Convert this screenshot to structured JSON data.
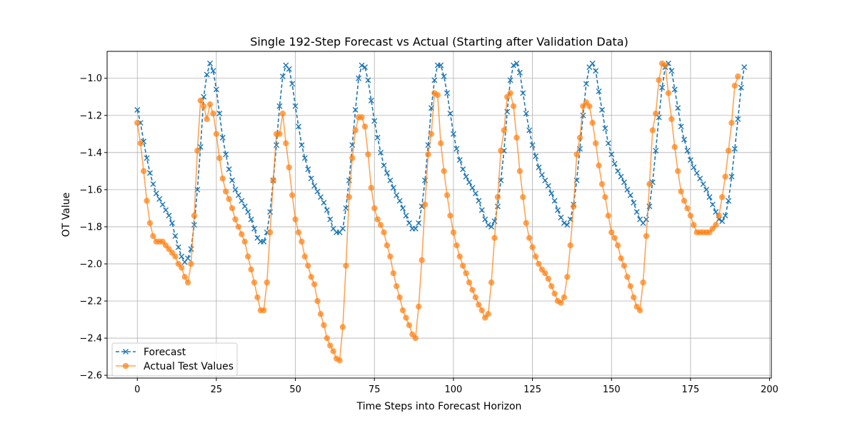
{
  "chart_data": {
    "type": "line",
    "title": "Single 192-Step Forecast vs Actual (Starting after Validation Data)",
    "xlabel": "Time Steps into Forecast Horizon",
    "ylabel": "OT Value",
    "xlim": [
      -9.55,
      200.55
    ],
    "ylim": [
      -2.615,
      -0.855
    ],
    "xticks": [
      0,
      25,
      50,
      75,
      100,
      125,
      150,
      175,
      200
    ],
    "yticks": [
      -2.6,
      -2.4,
      -2.2,
      -2.0,
      -1.8,
      -1.6,
      -1.4,
      -1.2,
      -1.0
    ],
    "xtick_labels": [
      "0",
      "25",
      "50",
      "75",
      "100",
      "125",
      "150",
      "175",
      "200"
    ],
    "ytick_labels": [
      "−2.6",
      "−2.4",
      "−2.2",
      "−2.0",
      "−1.8",
      "−1.6",
      "−1.4",
      "−1.2",
      "−1.0"
    ],
    "grid": true,
    "legend_position": "lower-left",
    "series": [
      {
        "name": "Forecast",
        "color": "#1f77b4",
        "line_style": "dashed",
        "marker": "x",
        "values": [
          -1.17,
          -1.24,
          -1.34,
          -1.43,
          -1.51,
          -1.57,
          -1.62,
          -1.65,
          -1.68,
          -1.71,
          -1.74,
          -1.78,
          -1.85,
          -1.91,
          -1.96,
          -1.99,
          -1.97,
          -1.92,
          -1.79,
          -1.6,
          -1.37,
          -1.1,
          -0.98,
          -0.92,
          -0.96,
          -1.06,
          -1.19,
          -1.32,
          -1.41,
          -1.49,
          -1.55,
          -1.6,
          -1.63,
          -1.66,
          -1.69,
          -1.72,
          -1.76,
          -1.81,
          -1.86,
          -1.88,
          -1.88,
          -1.83,
          -1.72,
          -1.55,
          -1.36,
          -1.15,
          -0.99,
          -0.93,
          -0.95,
          -1.03,
          -1.15,
          -1.26,
          -1.36,
          -1.43,
          -1.49,
          -1.54,
          -1.58,
          -1.61,
          -1.64,
          -1.67,
          -1.71,
          -1.76,
          -1.81,
          -1.83,
          -1.83,
          -1.81,
          -1.7,
          -1.55,
          -1.36,
          -1.17,
          -1.0,
          -0.93,
          -0.94,
          -1.01,
          -1.12,
          -1.23,
          -1.32,
          -1.4,
          -1.47,
          -1.51,
          -1.55,
          -1.59,
          -1.63,
          -1.66,
          -1.7,
          -1.74,
          -1.78,
          -1.81,
          -1.81,
          -1.78,
          -1.69,
          -1.55,
          -1.36,
          -1.16,
          -1.01,
          -0.93,
          -0.93,
          -0.99,
          -1.08,
          -1.19,
          -1.3,
          -1.38,
          -1.44,
          -1.49,
          -1.53,
          -1.56,
          -1.59,
          -1.62,
          -1.66,
          -1.71,
          -1.76,
          -1.79,
          -1.8,
          -1.77,
          -1.69,
          -1.55,
          -1.39,
          -1.18,
          -1.01,
          -0.93,
          -0.92,
          -0.97,
          -1.08,
          -1.19,
          -1.28,
          -1.36,
          -1.42,
          -1.48,
          -1.52,
          -1.55,
          -1.58,
          -1.62,
          -1.66,
          -1.71,
          -1.75,
          -1.78,
          -1.79,
          -1.76,
          -1.68,
          -1.55,
          -1.38,
          -1.2,
          -1.03,
          -0.94,
          -0.92,
          -0.96,
          -1.07,
          -1.17,
          -1.27,
          -1.35,
          -1.41,
          -1.46,
          -1.5,
          -1.53,
          -1.56,
          -1.6,
          -1.63,
          -1.67,
          -1.72,
          -1.76,
          -1.78,
          -1.76,
          -1.69,
          -1.56,
          -1.39,
          -1.21,
          -1.05,
          -0.94,
          -0.92,
          -0.96,
          -1.06,
          -1.16,
          -1.26,
          -1.33,
          -1.39,
          -1.44,
          -1.48,
          -1.51,
          -1.54,
          -1.57,
          -1.6,
          -1.64,
          -1.68,
          -1.72,
          -1.76,
          -1.77,
          -1.74,
          -1.66,
          -1.53,
          -1.38,
          -1.22,
          -1.05,
          -0.94
        ]
      },
      {
        "name": "Actual Test Values",
        "color": "#ff7f0e",
        "line_style": "solid",
        "marker": "o",
        "values": [
          -1.24,
          -1.35,
          -1.5,
          -1.66,
          -1.78,
          -1.85,
          -1.88,
          -1.88,
          -1.88,
          -1.9,
          -1.92,
          -1.94,
          -1.96,
          -2.0,
          -2.02,
          -2.07,
          -2.1,
          -2.0,
          -1.74,
          -1.39,
          -1.12,
          -1.15,
          -1.22,
          -1.14,
          -1.19,
          -1.3,
          -1.43,
          -1.54,
          -1.61,
          -1.65,
          -1.7,
          -1.76,
          -1.8,
          -1.84,
          -1.88,
          -1.96,
          -2.03,
          -2.1,
          -2.18,
          -2.25,
          -2.25,
          -2.1,
          -1.83,
          -1.55,
          -1.3,
          -1.3,
          -1.19,
          -1.35,
          -1.48,
          -1.63,
          -1.76,
          -1.83,
          -1.88,
          -1.96,
          -2.01,
          -2.07,
          -2.11,
          -2.2,
          -2.27,
          -2.33,
          -2.4,
          -2.44,
          -2.47,
          -2.51,
          -2.52,
          -2.34,
          -2.01,
          -1.64,
          -1.43,
          -1.28,
          -1.21,
          -1.21,
          -1.26,
          -1.41,
          -1.59,
          -1.7,
          -1.76,
          -1.79,
          -1.83,
          -1.9,
          -1.96,
          -2.05,
          -2.12,
          -2.18,
          -2.25,
          -2.29,
          -2.33,
          -2.38,
          -2.4,
          -2.23,
          -1.98,
          -1.68,
          -1.41,
          -1.3,
          -1.08,
          -1.09,
          -1.35,
          -1.5,
          -1.63,
          -1.74,
          -1.83,
          -1.9,
          -1.96,
          -2.01,
          -2.05,
          -2.1,
          -2.14,
          -2.18,
          -2.22,
          -2.25,
          -2.29,
          -2.27,
          -2.1,
          -1.86,
          -1.64,
          -1.39,
          -1.28,
          -1.1,
          -1.08,
          -1.15,
          -1.32,
          -1.5,
          -1.64,
          -1.78,
          -1.86,
          -1.91,
          -1.96,
          -2.0,
          -2.03,
          -2.05,
          -2.08,
          -2.12,
          -2.16,
          -2.2,
          -2.21,
          -2.18,
          -2.07,
          -1.9,
          -1.69,
          -1.41,
          -1.32,
          -1.15,
          -1.13,
          -1.15,
          -1.24,
          -1.35,
          -1.47,
          -1.57,
          -1.64,
          -1.74,
          -1.83,
          -1.86,
          -1.9,
          -1.97,
          -2.01,
          -2.07,
          -2.12,
          -2.18,
          -2.23,
          -2.25,
          -2.1,
          -1.85,
          -1.57,
          -1.28,
          -1.19,
          -1.01,
          -0.92,
          -0.93,
          -1.08,
          -1.22,
          -1.37,
          -1.5,
          -1.61,
          -1.66,
          -1.7,
          -1.74,
          -1.79,
          -1.83,
          -1.83,
          -1.83,
          -1.83,
          -1.83,
          -1.81,
          -1.79,
          -1.74,
          -1.64,
          -1.53,
          -1.39,
          -1.24,
          -1.04,
          -0.99
        ]
      }
    ]
  }
}
